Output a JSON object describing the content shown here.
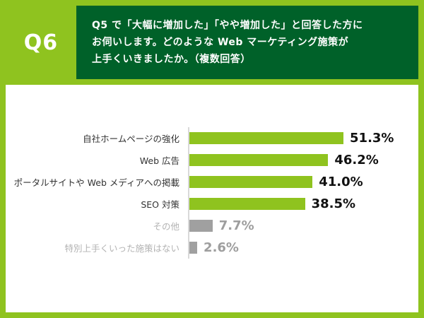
{
  "colors": {
    "background": "#8FC31F",
    "question_box": "#006129",
    "bar_green": "#8FC31F",
    "bar_gray": "#A0A0A0",
    "card": "#FFFFFF"
  },
  "header": {
    "question_number": "Q6",
    "question_lines": [
      "Q5 で「大幅に増加した」「やや増加した」と回答した方に",
      "お伺いします。どのような Web マーケティング施策が",
      "上手くいきましたか。（複数回答）"
    ]
  },
  "chart_data": {
    "type": "bar",
    "orientation": "horizontal",
    "title": "",
    "categories": [
      "自社ホームページの強化",
      "Web 広告",
      "ポータルサイトや Web メディアへの掲載",
      "SEO 対策",
      "その他",
      "特別上手くいった施策はない"
    ],
    "values": [
      51.3,
      46.2,
      41.0,
      38.5,
      7.7,
      2.6
    ],
    "value_labels": [
      "51.3%",
      "46.2%",
      "41.0%",
      "38.5%",
      "7.7%",
      "2.6%"
    ],
    "muted": [
      false,
      false,
      false,
      false,
      true,
      true
    ],
    "xlim": [
      0,
      60
    ],
    "grid": false,
    "legend": "none"
  }
}
